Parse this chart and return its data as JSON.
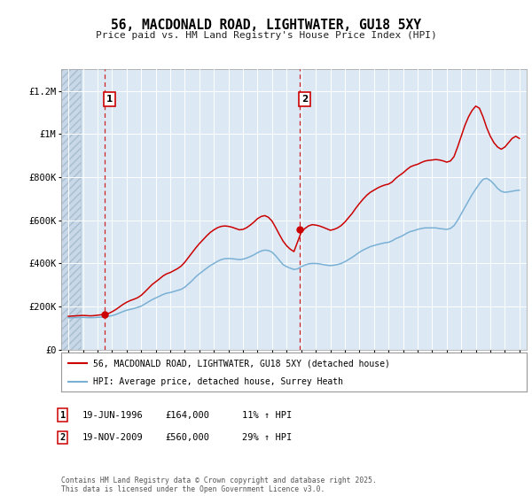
{
  "title": "56, MACDONALD ROAD, LIGHTWATER, GU18 5XY",
  "subtitle": "Price paid vs. HM Land Registry's House Price Index (HPI)",
  "background_color": "#ffffff",
  "plot_bg_color": "#dce9f5",
  "grid_color": "#ffffff",
  "red_line_color": "#cc0000",
  "blue_line_color": "#7ab0d4",
  "marker1_date": 1996.46,
  "marker1_value": 164000,
  "marker2_date": 2009.89,
  "marker2_value": 560000,
  "ylim": [
    0,
    1300000
  ],
  "xlim": [
    1993.5,
    2025.5
  ],
  "yticks": [
    0,
    200000,
    400000,
    600000,
    800000,
    1000000,
    1200000
  ],
  "ytick_labels": [
    "£0",
    "£200K",
    "£400K",
    "£600K",
    "£800K",
    "£1M",
    "£1.2M"
  ],
  "legend_label_red": "56, MACDONALD ROAD, LIGHTWATER, GU18 5XY (detached house)",
  "legend_label_blue": "HPI: Average price, detached house, Surrey Heath",
  "footer": "Contains HM Land Registry data © Crown copyright and database right 2025.\nThis data is licensed under the Open Government Licence v3.0.",
  "table_rows": [
    {
      "num": "1",
      "date": "19-JUN-1996",
      "price": "£164,000",
      "hpi": "11% ↑ HPI"
    },
    {
      "num": "2",
      "date": "19-NOV-2009",
      "price": "£560,000",
      "hpi": "29% ↑ HPI"
    }
  ],
  "hpi_data": {
    "years": [
      1994.0,
      1994.25,
      1994.5,
      1994.75,
      1995.0,
      1995.25,
      1995.5,
      1995.75,
      1996.0,
      1996.25,
      1996.5,
      1996.75,
      1997.0,
      1997.25,
      1997.5,
      1997.75,
      1998.0,
      1998.25,
      1998.5,
      1998.75,
      1999.0,
      1999.25,
      1999.5,
      1999.75,
      2000.0,
      2000.25,
      2000.5,
      2000.75,
      2001.0,
      2001.25,
      2001.5,
      2001.75,
      2002.0,
      2002.25,
      2002.5,
      2002.75,
      2003.0,
      2003.25,
      2003.5,
      2003.75,
      2004.0,
      2004.25,
      2004.5,
      2004.75,
      2005.0,
      2005.25,
      2005.5,
      2005.75,
      2006.0,
      2006.25,
      2006.5,
      2006.75,
      2007.0,
      2007.25,
      2007.5,
      2007.75,
      2008.0,
      2008.25,
      2008.5,
      2008.75,
      2009.0,
      2009.25,
      2009.5,
      2009.75,
      2010.0,
      2010.25,
      2010.5,
      2010.75,
      2011.0,
      2011.25,
      2011.5,
      2011.75,
      2012.0,
      2012.25,
      2012.5,
      2012.75,
      2013.0,
      2013.25,
      2013.5,
      2013.75,
      2014.0,
      2014.25,
      2014.5,
      2014.75,
      2015.0,
      2015.25,
      2015.5,
      2015.75,
      2016.0,
      2016.25,
      2016.5,
      2016.75,
      2017.0,
      2017.25,
      2017.5,
      2017.75,
      2018.0,
      2018.25,
      2018.5,
      2018.75,
      2019.0,
      2019.25,
      2019.5,
      2019.75,
      2020.0,
      2020.25,
      2020.5,
      2020.75,
      2021.0,
      2021.25,
      2021.5,
      2021.75,
      2022.0,
      2022.25,
      2022.5,
      2022.75,
      2023.0,
      2023.25,
      2023.5,
      2023.75,
      2024.0,
      2024.25,
      2024.5,
      2024.75,
      2025.0
    ],
    "values": [
      148000,
      148500,
      149000,
      149500,
      150000,
      149000,
      148500,
      149000,
      150000,
      151000,
      153000,
      155000,
      158000,
      163000,
      170000,
      177000,
      183000,
      187000,
      191000,
      196000,
      202000,
      212000,
      222000,
      232000,
      240000,
      248000,
      256000,
      262000,
      265000,
      270000,
      275000,
      280000,
      290000,
      305000,
      320000,
      338000,
      352000,
      365000,
      378000,
      390000,
      400000,
      410000,
      418000,
      422000,
      423000,
      422000,
      420000,
      418000,
      420000,
      425000,
      432000,
      440000,
      450000,
      458000,
      462000,
      460000,
      452000,
      435000,
      415000,
      395000,
      385000,
      378000,
      372000,
      375000,
      385000,
      392000,
      398000,
      400000,
      400000,
      398000,
      395000,
      392000,
      390000,
      392000,
      395000,
      400000,
      408000,
      418000,
      428000,
      440000,
      452000,
      462000,
      470000,
      478000,
      483000,
      488000,
      492000,
      496000,
      498000,
      505000,
      515000,
      522000,
      530000,
      540000,
      548000,
      552000,
      558000,
      562000,
      565000,
      565000,
      565000,
      565000,
      562000,
      560000,
      558000,
      562000,
      575000,
      600000,
      630000,
      660000,
      690000,
      720000,
      745000,
      770000,
      790000,
      795000,
      785000,
      768000,
      748000,
      735000,
      730000,
      732000,
      735000,
      738000,
      740000
    ]
  },
  "property_data": {
    "years": [
      1994.0,
      1994.25,
      1994.5,
      1994.75,
      1995.0,
      1995.25,
      1995.5,
      1995.75,
      1996.0,
      1996.25,
      1996.5,
      1996.75,
      1997.0,
      1997.25,
      1997.5,
      1997.75,
      1998.0,
      1998.25,
      1998.5,
      1998.75,
      1999.0,
      1999.25,
      1999.5,
      1999.75,
      2000.0,
      2000.25,
      2000.5,
      2000.75,
      2001.0,
      2001.25,
      2001.5,
      2001.75,
      2002.0,
      2002.25,
      2002.5,
      2002.75,
      2003.0,
      2003.25,
      2003.5,
      2003.75,
      2004.0,
      2004.25,
      2004.5,
      2004.75,
      2005.0,
      2005.25,
      2005.5,
      2005.75,
      2006.0,
      2006.25,
      2006.5,
      2006.75,
      2007.0,
      2007.25,
      2007.5,
      2007.75,
      2008.0,
      2008.25,
      2008.5,
      2008.75,
      2009.0,
      2009.25,
      2009.5,
      2009.75,
      2010.0,
      2010.25,
      2010.5,
      2010.75,
      2011.0,
      2011.25,
      2011.5,
      2011.75,
      2012.0,
      2012.25,
      2012.5,
      2012.75,
      2013.0,
      2013.25,
      2013.5,
      2013.75,
      2014.0,
      2014.25,
      2014.5,
      2014.75,
      2015.0,
      2015.25,
      2015.5,
      2015.75,
      2016.0,
      2016.25,
      2016.5,
      2016.75,
      2017.0,
      2017.25,
      2017.5,
      2017.75,
      2018.0,
      2018.25,
      2018.5,
      2018.75,
      2019.0,
      2019.25,
      2019.5,
      2019.75,
      2020.0,
      2020.25,
      2020.5,
      2020.75,
      2021.0,
      2021.25,
      2021.5,
      2021.75,
      2022.0,
      2022.25,
      2022.5,
      2022.75,
      2023.0,
      2023.25,
      2023.5,
      2023.75,
      2024.0,
      2024.25,
      2024.5,
      2024.75,
      2025.0
    ],
    "values": [
      155000,
      156000,
      157000,
      158000,
      159000,
      158000,
      157000,
      158000,
      160000,
      162000,
      164000,
      168000,
      176000,
      186000,
      198000,
      210000,
      220000,
      228000,
      234000,
      241000,
      252000,
      268000,
      285000,
      302000,
      315000,
      328000,
      342000,
      352000,
      358000,
      367000,
      376000,
      388000,
      406000,
      428000,
      450000,
      472000,
      492000,
      510000,
      528000,
      544000,
      556000,
      566000,
      572000,
      574000,
      572000,
      568000,
      562000,
      556000,
      558000,
      566000,
      578000,
      592000,
      608000,
      618000,
      622000,
      614000,
      596000,
      566000,
      534000,
      504000,
      482000,
      466000,
      455000,
      500000,
      545000,
      562000,
      574000,
      580000,
      578000,
      574000,
      568000,
      561000,
      554000,
      558000,
      565000,
      576000,
      592000,
      612000,
      632000,
      656000,
      678000,
      698000,
      716000,
      730000,
      740000,
      750000,
      758000,
      764000,
      768000,
      778000,
      795000,
      808000,
      820000,
      835000,
      848000,
      855000,
      860000,
      868000,
      875000,
      878000,
      880000,
      882000,
      880000,
      876000,
      870000,
      875000,
      895000,
      940000,
      990000,
      1040000,
      1080000,
      1110000,
      1130000,
      1120000,
      1080000,
      1030000,
      990000,
      960000,
      940000,
      930000,
      940000,
      960000,
      980000,
      990000,
      980000
    ]
  }
}
